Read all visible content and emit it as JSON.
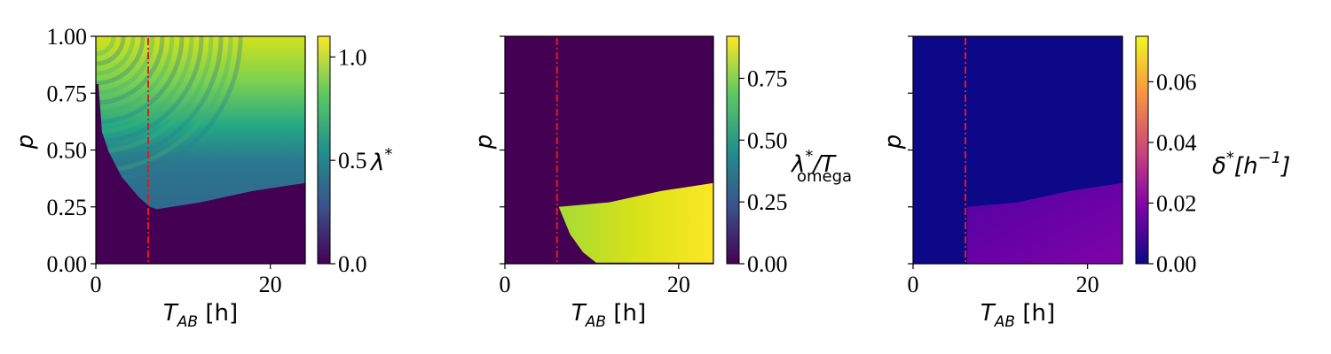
{
  "vline_x": 6,
  "chart_data": [
    {
      "type": "heatmap",
      "colormap": "viridis",
      "z_label": "λ*",
      "xlim": [
        0,
        24
      ],
      "ylim": [
        0,
        1
      ],
      "x_ticks": [
        "0",
        "20"
      ],
      "x_tick_values": [
        0,
        20
      ],
      "y_ticks": [
        "0.00",
        "0.25",
        "0.50",
        "0.75",
        "1.00"
      ],
      "y_tick_values": [
        0,
        0.25,
        0.5,
        0.75,
        1.0
      ],
      "xlabel": {
        "main": "T",
        "sub": "AB",
        "unit": " [h]"
      },
      "ylabel": "p",
      "colorbar": {
        "min": 0.0,
        "max": 1.1,
        "ticks": [
          "0.0",
          "0.5",
          "1.0"
        ],
        "tick_values": [
          0.0,
          0.5,
          1.0
        ]
      },
      "colorbar_label": {
        "main": "λ",
        "sup": "*"
      },
      "boundary": [
        [
          0.3,
          0.79
        ],
        [
          0.7,
          0.58
        ],
        [
          1.5,
          0.49
        ],
        [
          3,
          0.38
        ],
        [
          5,
          0.29
        ],
        [
          6.2,
          0.25
        ],
        [
          7,
          0.24
        ],
        [
          12,
          0.27
        ],
        [
          18,
          0.32
        ],
        [
          24,
          0.355
        ]
      ],
      "value_bands": [
        [
          0.25,
          0.35
        ],
        [
          0.5,
          0.55
        ],
        [
          0.75,
          0.85
        ],
        [
          1.0,
          1.05
        ]
      ]
    },
    {
      "type": "heatmap",
      "colormap": "viridis",
      "z_label": "λ*/T_omega",
      "xlim": [
        0,
        24
      ],
      "ylim": [
        0,
        1
      ],
      "x_ticks": [
        "0",
        "20"
      ],
      "x_tick_values": [
        0,
        20
      ],
      "y_ticks": [],
      "y_tick_values": [
        0,
        0.25,
        0.5,
        0.75,
        1.0
      ],
      "xlabel": {
        "main": "T",
        "sub": "AB",
        "unit": " [h]"
      },
      "ylabel": "p",
      "colorbar": {
        "min": 0.0,
        "max": 0.92,
        "ticks": [
          "0.00",
          "0.25",
          "0.50",
          "0.75"
        ],
        "tick_values": [
          0.0,
          0.25,
          0.5,
          0.75
        ]
      },
      "colorbar_label": {
        "main": "λ",
        "sup": "*",
        "rest": "/T",
        "sub": "omega"
      },
      "region_top": [
        [
          6.2,
          0.25
        ],
        [
          12,
          0.27
        ],
        [
          18,
          0.32
        ],
        [
          24,
          0.355
        ]
      ],
      "region_bottom": [
        [
          6.2,
          0.25
        ],
        [
          7.5,
          0.13
        ],
        [
          9,
          0.05
        ],
        [
          10.5,
          0.005
        ],
        [
          24,
          0.005
        ]
      ],
      "region_value_range": [
        0.55,
        0.92
      ]
    },
    {
      "type": "heatmap",
      "colormap": "plasma",
      "z_label": "δ*[h⁻¹]",
      "xlim": [
        0,
        24
      ],
      "ylim": [
        0,
        1
      ],
      "x_ticks": [
        "0",
        "20"
      ],
      "x_tick_values": [
        0,
        20
      ],
      "y_ticks": [],
      "y_tick_values": [
        0,
        0.25,
        0.5,
        0.75,
        1.0
      ],
      "xlabel": {
        "main": "T",
        "sub": "AB",
        "unit": " [h]"
      },
      "ylabel": "p",
      "colorbar": {
        "min": 0.0,
        "max": 0.075,
        "ticks": [
          "0.00",
          "0.02",
          "0.04",
          "0.06"
        ],
        "tick_values": [
          0.0,
          0.02,
          0.04,
          0.06
        ]
      },
      "colorbar_label": {
        "main": "δ",
        "sup": "*",
        "rest": "[h",
        "sup2": "−1",
        "end": "]"
      },
      "region_top": [
        [
          6.2,
          0.25
        ],
        [
          12,
          0.27
        ],
        [
          18,
          0.32
        ],
        [
          24,
          0.355
        ]
      ],
      "region_value_range": [
        0.018,
        0.026
      ]
    }
  ]
}
